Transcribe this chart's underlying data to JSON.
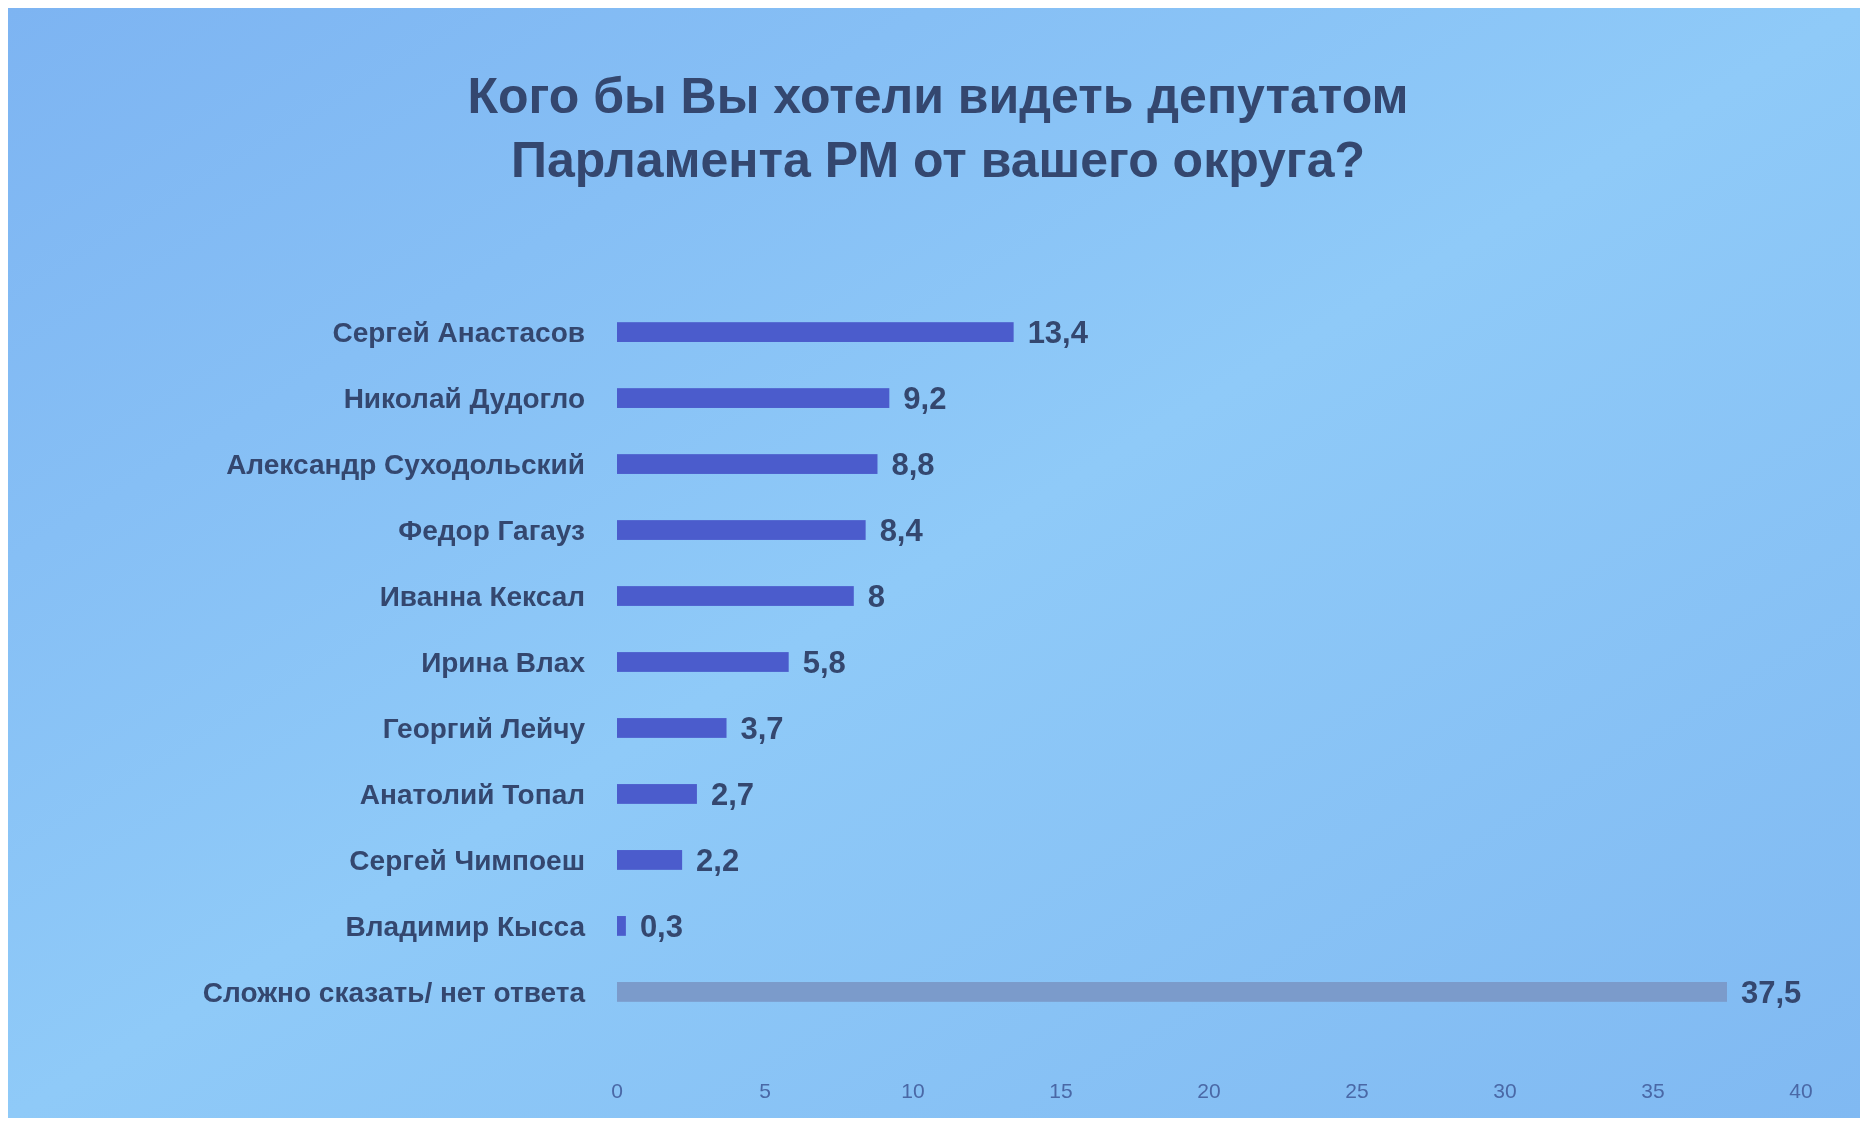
{
  "chart_data": {
    "type": "bar",
    "orientation": "horizontal",
    "title": "Кого бы Вы хотели видеть депутатом\nПарламента РМ от вашего округа?",
    "categories": [
      "Сергей Анастасов",
      "Николай Дудогло",
      "Александр Суходольский",
      "Федор Гагауз",
      "Иванна Кексал",
      "Ирина Влах",
      "Георгий Лейчу",
      "Анатолий Топал",
      "Сергей Чимпоеш",
      "Владимир Кысса",
      "Сложно сказать/ нет ответа"
    ],
    "values": [
      13.4,
      9.2,
      8.8,
      8.4,
      8,
      5.8,
      3.7,
      2.7,
      2.2,
      0.3,
      37.5
    ],
    "value_labels": [
      "13,4",
      "9,2",
      "8,8",
      "8,4",
      "8",
      "5,8",
      "3,7",
      "2,7",
      "2,2",
      "0,3",
      "37,5"
    ],
    "colors": [
      "#4b5ccc",
      "#4b5ccc",
      "#4b5ccc",
      "#4b5ccc",
      "#4b5ccc",
      "#4b5ccc",
      "#4b5ccc",
      "#4b5ccc",
      "#4b5ccc",
      "#4b5ccc",
      "#7b9bcb"
    ],
    "xlim": [
      0,
      40
    ],
    "xticks": [
      0,
      5,
      10,
      15,
      20,
      25,
      30,
      35,
      40
    ]
  }
}
